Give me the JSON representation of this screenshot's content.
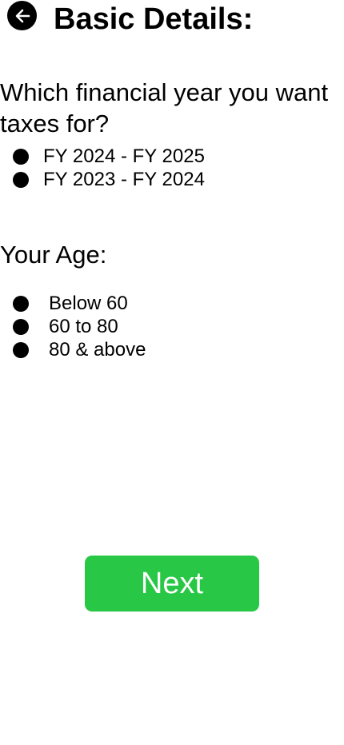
{
  "header": {
    "back_icon": "arrow-left-icon",
    "title": "Basic Details:"
  },
  "financial_year": {
    "question": "Which financial year you want taxes for?",
    "options": [
      {
        "label": "FY 2024 - FY 2025"
      },
      {
        "label": "FY 2023 - FY 2024"
      }
    ]
  },
  "age": {
    "question": "Your Age:",
    "options": [
      {
        "label": "Below 60"
      },
      {
        "label": "60 to 80"
      },
      {
        "label": "80 & above"
      }
    ]
  },
  "footer": {
    "next_label": "Next",
    "next_color": "#28c745"
  }
}
